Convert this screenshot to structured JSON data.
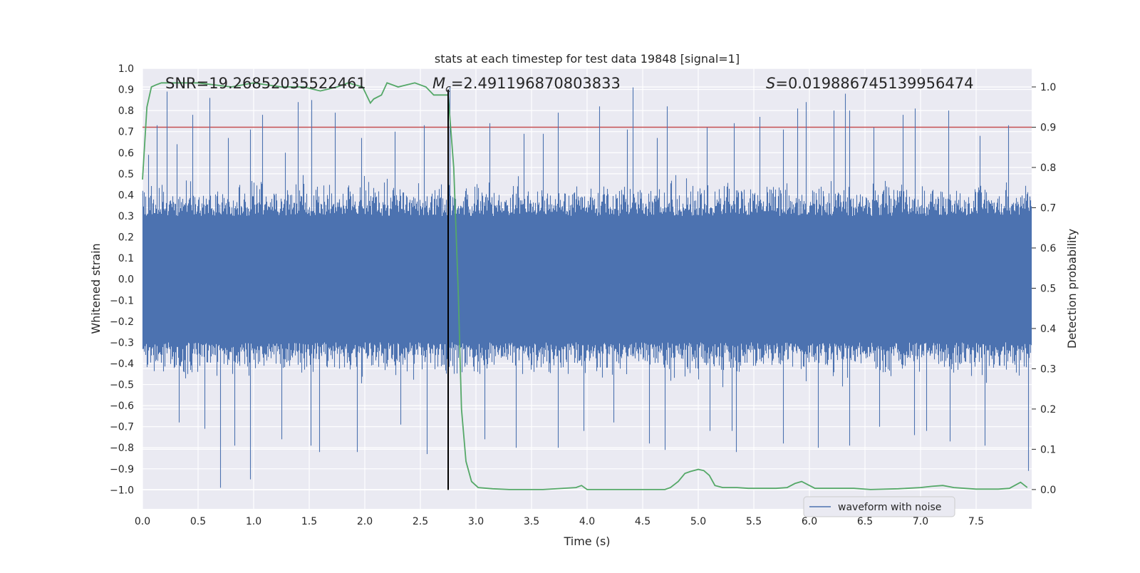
{
  "chart_data": {
    "type": "line",
    "title": "stats at each timestep for test data 19848 [signal=1]",
    "xlabel": "Time (s)",
    "ylabel_left": "Whitened strain",
    "ylabel_right": "Detection probability",
    "xlim": [
      0.0,
      8.0
    ],
    "ylim_left": [
      -1.09,
      1.0
    ],
    "ylim_right": [
      -0.048,
      1.046
    ],
    "x_ticks": [
      "0.0",
      "0.5",
      "1.0",
      "1.5",
      "2.0",
      "2.5",
      "3.0",
      "3.5",
      "4.0",
      "4.5",
      "5.0",
      "5.5",
      "6.0",
      "6.5",
      "7.0",
      "7.5"
    ],
    "y_left_ticks": [
      "1.0",
      "0.9",
      "0.8",
      "0.7",
      "0.6",
      "0.5",
      "0.4",
      "0.3",
      "0.2",
      "0.1",
      "0.0",
      "−0.1",
      "−0.2",
      "−0.3",
      "−0.4",
      "−0.5",
      "−0.6",
      "−0.7",
      "−0.8",
      "−0.9",
      "−1.0"
    ],
    "y_right_ticks": [
      "1.0",
      "0.9",
      "0.8",
      "0.7",
      "0.6",
      "0.5",
      "0.4",
      "0.3",
      "0.2",
      "0.1",
      "0.0"
    ],
    "grid": true,
    "annotations": {
      "snr": "SNR=19.26852035522461",
      "mc_symbol": "M",
      "mc_sub": "c",
      "mc_value": "=2.491196870803833",
      "s_symbol": "S",
      "s_value": "=0.019886745139956474"
    },
    "legend": {
      "label": "waveform with noise",
      "location": "lower-right"
    },
    "threshold": {
      "value": 0.9,
      "axis": "right",
      "color": "#c44e52"
    },
    "event_marker": {
      "time": 2.75,
      "color": "#000000"
    },
    "series": [
      {
        "name": "waveform with noise",
        "axis": "left",
        "color": "#4c72b0",
        "description": "whitened strain noise spanning roughly ±0.3 dense, peaks to about ±1.0",
        "peaks_up": [
          [
            0.05,
            0.59
          ],
          [
            0.13,
            0.73
          ],
          [
            0.22,
            0.89
          ],
          [
            0.31,
            0.64
          ],
          [
            0.45,
            0.78
          ],
          [
            0.6,
            0.86
          ],
          [
            0.77,
            0.67
          ],
          [
            0.97,
            0.71
          ],
          [
            1.08,
            0.78
          ],
          [
            1.28,
            0.6
          ],
          [
            1.4,
            0.84
          ],
          [
            1.52,
            0.85
          ],
          [
            1.73,
            0.79
          ],
          [
            1.97,
            0.67
          ],
          [
            2.27,
            0.7
          ],
          [
            2.53,
            0.73
          ],
          [
            2.76,
            0.91
          ],
          [
            3.12,
            0.74
          ],
          [
            3.43,
            0.69
          ],
          [
            3.6,
            0.69
          ],
          [
            3.74,
            0.79
          ],
          [
            4.11,
            0.82
          ],
          [
            4.36,
            0.71
          ],
          [
            4.41,
            0.91
          ],
          [
            4.63,
            0.67
          ],
          [
            4.72,
            0.82
          ],
          [
            5.08,
            0.72
          ],
          [
            5.32,
            0.74
          ],
          [
            5.55,
            0.77
          ],
          [
            5.76,
            0.71
          ],
          [
            5.89,
            0.81
          ],
          [
            5.97,
            0.84
          ],
          [
            6.22,
            0.8
          ],
          [
            6.32,
            0.88
          ],
          [
            6.36,
            0.8
          ],
          [
            6.58,
            0.72
          ],
          [
            6.84,
            0.78
          ],
          [
            6.95,
            0.81
          ],
          [
            7.25,
            0.8
          ],
          [
            7.53,
            0.68
          ],
          [
            7.79,
            0.73
          ]
        ],
        "peaks_down": [
          [
            0.33,
            -0.68
          ],
          [
            0.56,
            -0.71
          ],
          [
            0.7,
            -0.99
          ],
          [
            0.83,
            -0.79
          ],
          [
            0.97,
            -0.95
          ],
          [
            1.25,
            -0.76
          ],
          [
            1.51,
            -0.79
          ],
          [
            1.59,
            -0.82
          ],
          [
            1.93,
            -0.82
          ],
          [
            2.32,
            -0.69
          ],
          [
            2.56,
            -0.83
          ],
          [
            3.08,
            -0.76
          ],
          [
            3.36,
            -0.8
          ],
          [
            3.74,
            -0.8
          ],
          [
            3.97,
            -0.72
          ],
          [
            4.24,
            -0.68
          ],
          [
            4.56,
            -0.78
          ],
          [
            4.7,
            -0.81
          ],
          [
            5.1,
            -0.72
          ],
          [
            5.3,
            -0.72
          ],
          [
            5.34,
            -0.82
          ],
          [
            5.76,
            -0.78
          ],
          [
            6.08,
            -0.8
          ],
          [
            6.36,
            -0.79
          ],
          [
            6.63,
            -0.7
          ],
          [
            6.94,
            -0.74
          ],
          [
            7.05,
            -0.72
          ],
          [
            7.26,
            -0.77
          ],
          [
            7.58,
            -0.79
          ],
          [
            7.97,
            -0.91
          ]
        ]
      },
      {
        "name": "detection probability",
        "axis": "right",
        "color": "#55a868",
        "x": [
          0.0,
          0.04,
          0.08,
          0.12,
          0.17,
          0.25,
          0.5,
          0.8,
          1.0,
          1.25,
          1.45,
          1.6,
          1.75,
          1.85,
          1.98,
          2.05,
          2.08,
          2.15,
          2.2,
          2.3,
          2.45,
          2.55,
          2.62,
          2.7,
          2.75,
          2.8,
          2.84,
          2.87,
          2.91,
          2.96,
          3.02,
          3.15,
          3.3,
          3.6,
          3.9,
          3.95,
          4.0,
          4.1,
          4.2,
          4.3,
          4.7,
          4.75,
          4.82,
          4.88,
          4.93,
          5.0,
          5.05,
          5.1,
          5.15,
          5.22,
          5.35,
          5.45,
          5.55,
          5.7,
          5.8,
          5.87,
          5.93,
          6.0,
          6.05,
          6.2,
          6.4,
          6.55,
          6.8,
          7.0,
          7.1,
          7.2,
          7.3,
          7.5,
          7.7,
          7.8,
          7.86,
          7.9,
          7.96
        ],
        "y": [
          0.77,
          0.95,
          1.0,
          1.005,
          1.01,
          1.01,
          1.01,
          1.0,
          1.01,
          1.0,
          1.0,
          0.99,
          1.0,
          1.01,
          1.0,
          0.96,
          0.97,
          0.98,
          1.01,
          1.0,
          1.01,
          1.0,
          0.98,
          0.98,
          0.98,
          0.8,
          0.5,
          0.2,
          0.07,
          0.02,
          0.005,
          0.002,
          0.0,
          0.0,
          0.005,
          0.01,
          0.0,
          0.0,
          0.0,
          0.0,
          0.0,
          0.005,
          0.02,
          0.04,
          0.045,
          0.05,
          0.047,
          0.035,
          0.01,
          0.005,
          0.005,
          0.003,
          0.003,
          0.003,
          0.005,
          0.015,
          0.02,
          0.01,
          0.003,
          0.003,
          0.003,
          0.0,
          0.002,
          0.005,
          0.008,
          0.01,
          0.005,
          0.001,
          0.001,
          0.003,
          0.012,
          0.018,
          0.005
        ]
      }
    ]
  }
}
